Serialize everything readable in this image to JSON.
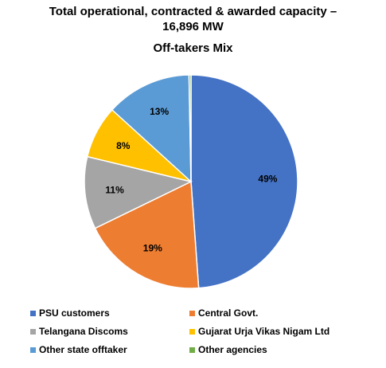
{
  "chart_data": {
    "type": "pie",
    "title_line1": "Total operational, contracted & awarded capacity –",
    "title_line2": "16,896 MW",
    "subtitle": "Off-takers Mix",
    "slices": [
      {
        "label": "PSU customers",
        "value": 49,
        "display": "49%",
        "color": "#4472C4"
      },
      {
        "label": "Central Govt.",
        "value": 19,
        "display": "19%",
        "color": "#ED7D31"
      },
      {
        "label": "Telangana Discoms",
        "value": 11,
        "display": "11%",
        "color": "#A5A5A5"
      },
      {
        "label": "Gujarat Urja Vikas Nigam Ltd",
        "value": 8,
        "display": "8%",
        "color": "#FFC000"
      },
      {
        "label": "Other state offtaker",
        "value": 13,
        "display": "13%",
        "color": "#5B9BD5"
      },
      {
        "label": "Other agencies",
        "value": 0.3,
        "display": "",
        "color": "#70AD47"
      }
    ],
    "legend_placement": "bottom"
  }
}
